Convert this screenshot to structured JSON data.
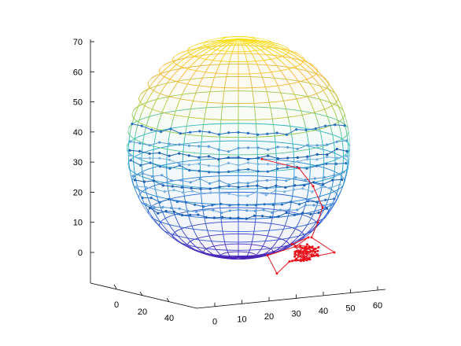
{
  "chart_data": {
    "type": "scatter",
    "subtype": "3d-wireframe-sphere-with-trajectories",
    "title": "",
    "xlabel": "",
    "ylabel": "",
    "zlabel": "",
    "axes": {
      "z": {
        "ticks": [
          "0",
          "10",
          "20",
          "30",
          "40",
          "50",
          "60",
          "70"
        ],
        "lim": [
          -10,
          70
        ]
      },
      "y": {
        "ticks": [
          "0",
          "20",
          "40"
        ],
        "lim": [
          -10,
          50
        ]
      },
      "x": {
        "ticks": [
          "0",
          "10",
          "20",
          "30",
          "40",
          "50",
          "60"
        ],
        "lim": [
          -5,
          65
        ]
      }
    },
    "sphere": {
      "colormap": "parula-like (blue at bottom to yellow at top)",
      "z_range": [
        0,
        65
      ]
    },
    "series": [
      {
        "color": "#1f5fb0",
        "style": "dotted-lines",
        "description": "blue trajectories on sphere surface",
        "z_levels": [
          14,
          16,
          18,
          22,
          24,
          26,
          30,
          32,
          34,
          37,
          42
        ]
      },
      {
        "color": "#e8121c",
        "style": "line",
        "description": "red trajectory outside sphere",
        "z_values": [
          31,
          28,
          22,
          15,
          10,
          5,
          0,
          -3,
          -7,
          -1,
          2,
          5
        ]
      }
    ],
    "grid": false,
    "legend": "none",
    "colors": {
      "blue_series": "#1f5fb0",
      "red_series": "#e8121c",
      "axis": "#000000"
    }
  }
}
